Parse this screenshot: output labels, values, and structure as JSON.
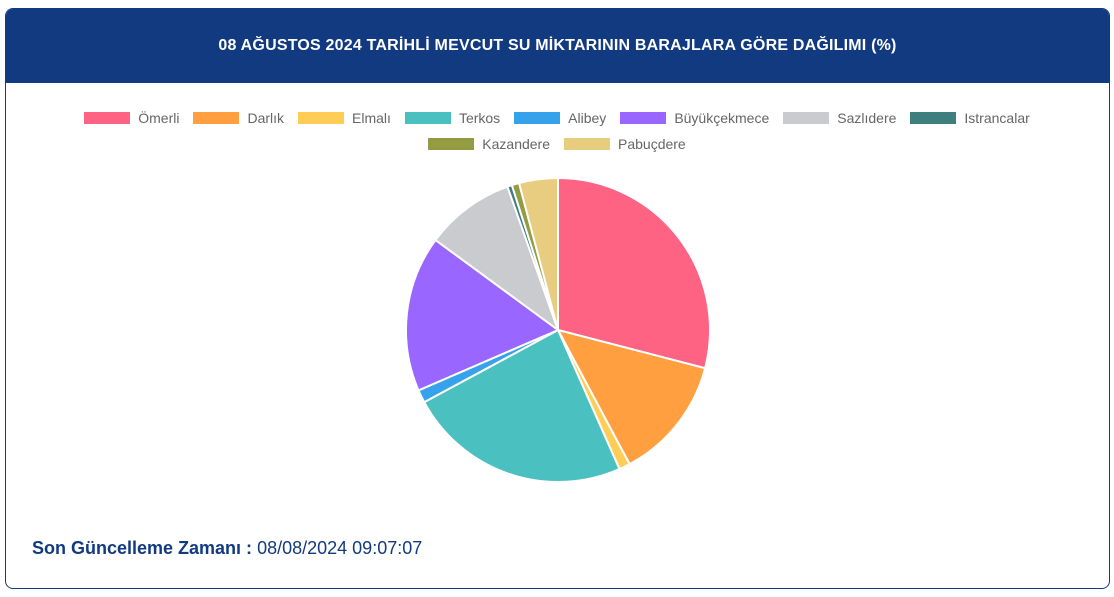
{
  "header": {
    "title": "08 AĞUSTOS 2024 TARİHLİ MEVCUT SU MİKTARININ BARAJLARA GÖRE DAĞILIMI (%)"
  },
  "chart_data": {
    "type": "pie",
    "title": "08 AĞUSTOS 2024 TARİHLİ MEVCUT SU MİKTARININ BARAJLARA GÖRE DAĞILIMI (%)",
    "legend_position": "top",
    "slices": [
      {
        "label": "Ömerli",
        "value": 29.6,
        "color": "#ff6384"
      },
      {
        "label": "Darlık",
        "value": 13.4,
        "color": "#ff9f40"
      },
      {
        "label": "Elmalı",
        "value": 1.2,
        "color": "#ffcd56"
      },
      {
        "label": "Terkos",
        "value": 24.2,
        "color": "#4bc0c0"
      },
      {
        "label": "Alibey",
        "value": 1.4,
        "color": "#36a2eb"
      },
      {
        "label": "Büyükçekmece",
        "value": 16.9,
        "color": "#9966ff"
      },
      {
        "label": "Sazlıdere",
        "value": 9.7,
        "color": "#c9cbcf"
      },
      {
        "label": "Istrancalar",
        "value": 0.5,
        "color": "#3e7f7e"
      },
      {
        "label": "Kazandere",
        "value": 0.8,
        "color": "#949c41"
      },
      {
        "label": "Pabuçdere",
        "value": 4.2,
        "color": "#e8cc80"
      }
    ]
  },
  "footer": {
    "label": "Son Güncelleme Zamanı :",
    "timestamp": "08/08/2024 09:07:07"
  }
}
